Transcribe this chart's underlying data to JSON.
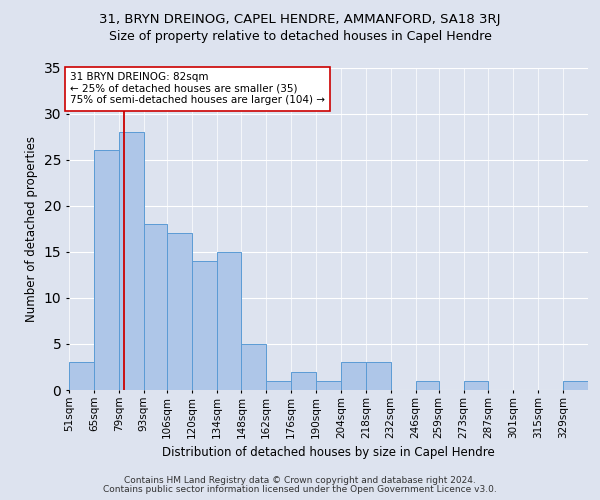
{
  "title1": "31, BRYN DREINOG, CAPEL HENDRE, AMMANFORD, SA18 3RJ",
  "title2": "Size of property relative to detached houses in Capel Hendre",
  "xlabel": "Distribution of detached houses by size in Capel Hendre",
  "ylabel": "Number of detached properties",
  "footer1": "Contains HM Land Registry data © Crown copyright and database right 2024.",
  "footer2": "Contains public sector information licensed under the Open Government Licence v3.0.",
  "annotation_line1": "31 BRYN DREINOG: 82sqm",
  "annotation_line2": "← 25% of detached houses are smaller (35)",
  "annotation_line3": "75% of semi-detached houses are larger (104) →",
  "bar_labels": [
    "51sqm",
    "65sqm",
    "79sqm",
    "93sqm",
    "106sqm",
    "120sqm",
    "134sqm",
    "148sqm",
    "162sqm",
    "176sqm",
    "190sqm",
    "204sqm",
    "218sqm",
    "232sqm",
    "246sqm",
    "259sqm",
    "273sqm",
    "287sqm",
    "301sqm",
    "315sqm",
    "329sqm"
  ],
  "bar_values": [
    3,
    26,
    28,
    18,
    17,
    14,
    15,
    5,
    1,
    2,
    1,
    3,
    3,
    0,
    1,
    0,
    1,
    0,
    0,
    0,
    1
  ],
  "bar_edges": [
    51,
    65,
    79,
    93,
    106,
    120,
    134,
    148,
    162,
    176,
    190,
    204,
    218,
    232,
    246,
    259,
    273,
    287,
    301,
    315,
    329,
    343
  ],
  "bar_color": "#aec6e8",
  "bar_edgecolor": "#5b9bd5",
  "vline_color": "#cc0000",
  "vline_x": 82,
  "box_facecolor": "#ffffff",
  "box_edgecolor": "#cc0000",
  "ylim": [
    0,
    35
  ],
  "background_color": "#dde3ef",
  "axes_facecolor": "#dde3ef",
  "grid_color": "#ffffff",
  "title1_fontsize": 9.5,
  "title2_fontsize": 9,
  "ylabel_fontsize": 8.5,
  "xlabel_fontsize": 8.5,
  "tick_fontsize": 7.5,
  "annotation_fontsize": 7.5,
  "footer_fontsize": 6.5
}
